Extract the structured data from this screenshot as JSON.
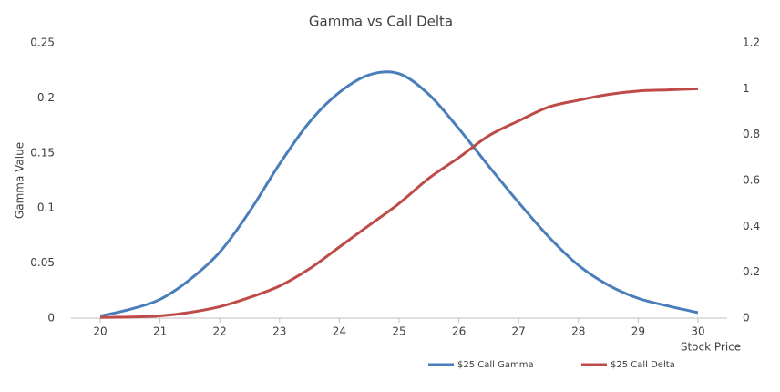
{
  "chart_data": {
    "type": "line",
    "title": "Gamma vs Call Delta",
    "y_label": "Gamma Value",
    "x_label": "Stock Price",
    "x": [
      20,
      20.5,
      21,
      21.5,
      22,
      22.5,
      23,
      23.5,
      24,
      24.5,
      25,
      25.5,
      26,
      26.5,
      27,
      27.5,
      28,
      28.5,
      29,
      29.5,
      30
    ],
    "xlim": [
      20,
      30
    ],
    "xticks": [
      20,
      21,
      22,
      23,
      24,
      25,
      26,
      27,
      28,
      29,
      30
    ],
    "ylim": [
      0,
      0.25
    ],
    "yticks": [
      0,
      0.05,
      0.1,
      0.15,
      0.2,
      0.25
    ],
    "y2lim": [
      0,
      1.2
    ],
    "y2ticks": [
      0,
      0.2,
      0.4,
      0.6,
      0.8,
      1,
      1.2
    ],
    "grid": false,
    "legend": "bottom",
    "series": [
      {
        "name": "$25 Call Gamma",
        "color": "#4a7ebb",
        "values": [
          0.002,
          0.008,
          0.017,
          0.035,
          0.06,
          0.097,
          0.14,
          0.178,
          0.205,
          0.221,
          0.222,
          0.203,
          0.172,
          0.138,
          0.105,
          0.074,
          0.048,
          0.03,
          0.018,
          0.011,
          0.005
        ]
      },
      {
        "name": "$25 Call Delta",
        "color": "#be4b48",
        "axis": "y2",
        "values": [
          0.003,
          0.005,
          0.01,
          0.025,
          0.05,
          0.09,
          0.14,
          0.215,
          0.31,
          0.405,
          0.5,
          0.61,
          0.7,
          0.795,
          0.86,
          0.92,
          0.95,
          0.975,
          0.99,
          0.995,
          1.0
        ]
      }
    ]
  }
}
